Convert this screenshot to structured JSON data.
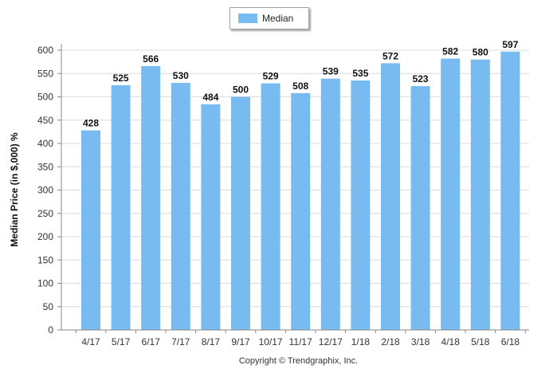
{
  "chart_data": {
    "type": "bar",
    "categories": [
      "4/17",
      "5/17",
      "6/17",
      "7/17",
      "8/17",
      "9/17",
      "10/17",
      "11/17",
      "12/17",
      "1/18",
      "2/18",
      "3/18",
      "4/18",
      "5/18",
      "6/18"
    ],
    "series": [
      {
        "name": "Median",
        "values": [
          428,
          525,
          566,
          530,
          484,
          500,
          529,
          508,
          539,
          535,
          572,
          523,
          582,
          580,
          597
        ]
      }
    ],
    "ylabel": "Median Price (in $,000) %",
    "xlabel": "",
    "ylim": [
      0,
      600
    ],
    "yticks": [
      0,
      50,
      100,
      150,
      200,
      250,
      300,
      350,
      400,
      450,
      500,
      550,
      600
    ],
    "grid": true,
    "legend_position": "top-center",
    "bar_color": "#78bbf1"
  },
  "legend": {
    "label": "Median"
  },
  "footer": {
    "copyright": "Copyright © Trendgraphix, Inc."
  }
}
